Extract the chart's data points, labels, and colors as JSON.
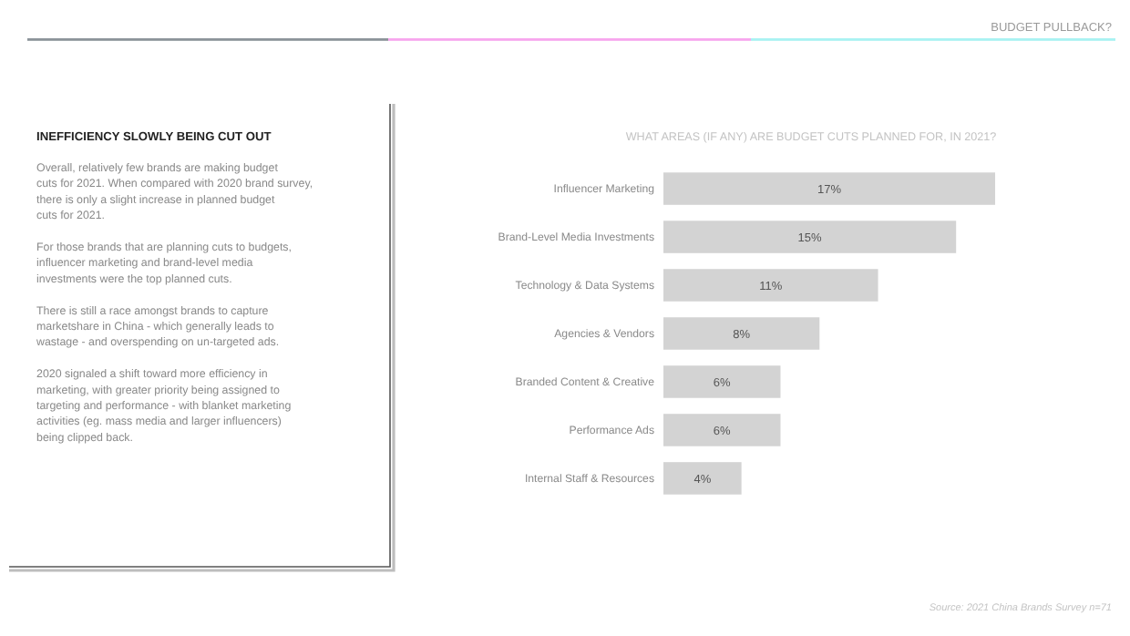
{
  "chart_data": {
    "type": "bar",
    "orientation": "horizontal",
    "title": "WHAT AREAS (IF ANY) ARE BUDGET CUTS PLANNED FOR, IN 2021?",
    "categories": [
      "Influencer Marketing",
      "Brand-Level Media Investments",
      "Technology & Data Systems",
      "Agencies & Vendors",
      "Branded Content & Creative",
      "Performance Ads",
      "Internal Staff & Resources"
    ],
    "values": [
      17,
      15,
      11,
      8,
      6,
      6,
      4
    ],
    "value_labels": [
      "17%",
      "15%",
      "11%",
      "8%",
      "6%",
      "6%",
      "4%"
    ],
    "color": "#d3d3d3",
    "annotations": [
      "BUDGET PULLBACK?",
      "INEFFICIENCY SLOWLY BEING CUT OUT",
      "Overall, relatively few brands are making budget cuts for 2021. When compared with 2020 brand survey, there is only a slight increase in planned budget cuts for 2021.",
      "For those brands that are planning cuts to budgets, influencer marketing and brand-level media investments were the top planned cuts.",
      "There is still a race amongst brands to capture marketshare in China - which generally leads to wastage - and overspending on un-targeted ads.",
      "2020 signaled a shift toward more efficiency in marketing, with greater priority being assigned to targeting and performance - with blanket marketing activities (eg. mass media and larger influencers) being clipped back.",
      "Source: 2021 China Brands Survey n=71"
    ]
  }
}
